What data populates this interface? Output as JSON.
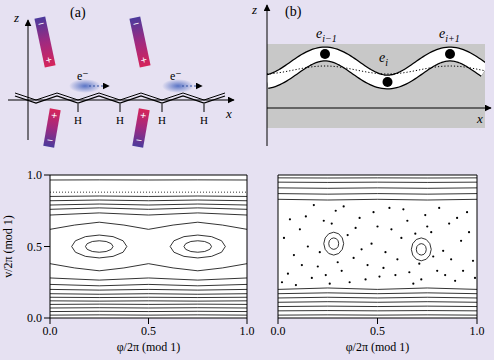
{
  "diagrams": {
    "a": {
      "label": "(a)",
      "axes": {
        "vertical": "z",
        "horizontal": "x"
      },
      "electrons": [
        "e⁻",
        "e⁻"
      ],
      "hydrogens": [
        "H",
        "H",
        "H",
        "H"
      ],
      "dipoles": [
        {
          "top": "−",
          "bottom": "+"
        },
        {
          "top": "−",
          "bottom": "+"
        },
        {
          "top": "+",
          "bottom": "−"
        },
        {
          "top": "+",
          "bottom": "−"
        }
      ]
    },
    "b": {
      "label": "(b)",
      "axes": {
        "vertical": "z",
        "horizontal": "x"
      },
      "sites": [
        {
          "base": "e",
          "sub": "i−1"
        },
        {
          "base": "e",
          "sub": "i"
        },
        {
          "base": "e",
          "sub": "i+1"
        }
      ]
    }
  },
  "chart_data": [
    {
      "type": "line",
      "color": "#000000",
      "xlabel": "φ/2π (mod 1)",
      "ylabel": "v/2π (mod 1)",
      "xlim": [
        0,
        1
      ],
      "ylim": [
        0,
        1
      ],
      "xticks": [
        {
          "value": 0,
          "label": "0.0"
        },
        {
          "value": 0.5,
          "label": "0.5"
        },
        {
          "value": 1,
          "label": "1.0"
        }
      ],
      "yticks": [
        {
          "value": 0,
          "label": "0.0"
        },
        {
          "value": 0.5,
          "label": "0.5"
        },
        {
          "value": 1,
          "label": "1.0"
        }
      ],
      "series": [
        {
          "x": [
            0,
            0.25,
            0.5,
            0.75,
            1
          ],
          "values": [
            0.02,
            0.022,
            0.02,
            0.022,
            0.02
          ]
        },
        {
          "x": [
            0,
            0.25,
            0.5,
            0.75,
            1
          ],
          "values": [
            0.045,
            0.047,
            0.045,
            0.047,
            0.045
          ]
        },
        {
          "x": [
            0,
            0.25,
            0.5,
            0.75,
            1
          ],
          "values": [
            0.07,
            0.072,
            0.07,
            0.072,
            0.07
          ]
        },
        {
          "x": [
            0,
            0.25,
            0.5,
            0.75,
            1
          ],
          "values": [
            0.095,
            0.097,
            0.095,
            0.097,
            0.095
          ]
        },
        {
          "x": [
            0,
            0.25,
            0.5,
            0.75,
            1
          ],
          "values": [
            0.12,
            0.118,
            0.12,
            0.118,
            0.12
          ]
        },
        {
          "x": [
            0,
            0.25,
            0.5,
            0.75,
            1
          ],
          "values": [
            0.145,
            0.143,
            0.145,
            0.143,
            0.145
          ]
        },
        {
          "x": [
            0,
            0.25,
            0.5,
            0.75,
            1
          ],
          "values": [
            0.17,
            0.166,
            0.17,
            0.166,
            0.17
          ]
        },
        {
          "x": [
            0,
            0.25,
            0.5,
            0.75,
            1
          ],
          "values": [
            0.2,
            0.195,
            0.2,
            0.195,
            0.2
          ]
        },
        {
          "x": [
            0,
            0.25,
            0.5,
            0.75,
            1
          ],
          "values": [
            0.235,
            0.225,
            0.235,
            0.225,
            0.235
          ]
        },
        {
          "x": [
            0,
            0.25,
            0.5,
            0.75,
            1
          ],
          "values": [
            0.28,
            0.265,
            0.28,
            0.265,
            0.28
          ]
        },
        {
          "x": [
            0,
            0.125,
            0.25,
            0.375,
            0.5,
            0.625,
            0.75,
            0.875,
            1
          ],
          "values": [
            0.38,
            0.35,
            0.33,
            0.35,
            0.38,
            0.35,
            0.33,
            0.35,
            0.38
          ]
        },
        {
          "x": [
            0,
            0.125,
            0.25,
            0.375,
            0.5,
            0.625,
            0.75,
            0.875,
            1
          ],
          "values": [
            0.62,
            0.65,
            0.67,
            0.65,
            0.62,
            0.65,
            0.67,
            0.65,
            0.62
          ]
        },
        {
          "x": [
            0.32,
            0.311,
            0.285,
            0.25,
            0.215,
            0.189,
            0.18,
            0.189,
            0.215,
            0.25,
            0.285,
            0.311,
            0.32
          ],
          "values": [
            0.5,
            0.52,
            0.535,
            0.54,
            0.535,
            0.52,
            0.5,
            0.48,
            0.465,
            0.46,
            0.465,
            0.48,
            0.5
          ]
        },
        {
          "x": [
            0.39,
            0.371,
            0.32,
            0.25,
            0.18,
            0.129,
            0.11,
            0.129,
            0.18,
            0.25,
            0.32,
            0.371,
            0.39
          ],
          "values": [
            0.5,
            0.54,
            0.569,
            0.58,
            0.569,
            0.54,
            0.5,
            0.46,
            0.431,
            0.42,
            0.431,
            0.46,
            0.5
          ]
        },
        {
          "x": [
            0.82,
            0.811,
            0.785,
            0.75,
            0.715,
            0.689,
            0.68,
            0.689,
            0.715,
            0.75,
            0.785,
            0.811,
            0.82
          ],
          "values": [
            0.5,
            0.52,
            0.535,
            0.54,
            0.535,
            0.52,
            0.5,
            0.48,
            0.465,
            0.46,
            0.465,
            0.48,
            0.5
          ]
        },
        {
          "x": [
            0.89,
            0.871,
            0.82,
            0.75,
            0.68,
            0.629,
            0.61,
            0.629,
            0.68,
            0.75,
            0.82,
            0.871,
            0.89
          ],
          "values": [
            0.5,
            0.54,
            0.569,
            0.58,
            0.569,
            0.54,
            0.5,
            0.46,
            0.431,
            0.42,
            0.431,
            0.46,
            0.5
          ]
        },
        {
          "x": [
            0,
            0.25,
            0.5,
            0.75,
            1
          ],
          "values": [
            0.72,
            0.735,
            0.72,
            0.735,
            0.72
          ]
        },
        {
          "x": [
            0,
            0.25,
            0.5,
            0.75,
            1
          ],
          "values": [
            0.76,
            0.77,
            0.76,
            0.77,
            0.76
          ]
        },
        {
          "x": [
            0,
            0.25,
            0.5,
            0.75,
            1
          ],
          "values": [
            0.79,
            0.797,
            0.79,
            0.797,
            0.79
          ]
        },
        {
          "x": [
            0,
            0.25,
            0.5,
            0.75,
            1
          ],
          "values": [
            0.82,
            0.825,
            0.82,
            0.825,
            0.82
          ]
        },
        {
          "x": [
            0,
            0.25,
            0.5,
            0.75,
            1
          ],
          "values": [
            0.85,
            0.853,
            0.85,
            0.853,
            0.85
          ]
        },
        {
          "x": [
            0,
            0.25,
            0.5,
            0.75,
            1
          ],
          "values": [
            0.88,
            0.88,
            0.88,
            0.88,
            0.88
          ],
          "line_style": "dotted"
        },
        {
          "x": [
            0,
            0.25,
            0.5,
            0.75,
            1
          ],
          "values": [
            0.965,
            0.966,
            0.965,
            0.966,
            0.965
          ]
        }
      ]
    },
    {
      "type": "line",
      "color": "#000000",
      "xlabel": "φ/2π (mod 1)",
      "xlim": [
        0,
        1
      ],
      "ylim": [
        0,
        1
      ],
      "xticks": [
        {
          "value": 0,
          "label": "0.0"
        },
        {
          "value": 0.5,
          "label": "0.5"
        },
        {
          "value": 1,
          "label": "1.0"
        }
      ],
      "yticks": [
        0,
        0.5,
        1
      ],
      "tick_labels": "x",
      "series": [
        {
          "x": [
            0,
            0.25,
            0.5,
            0.75,
            1
          ],
          "values": [
            0.02,
            0.022,
            0.02,
            0.022,
            0.02
          ]
        },
        {
          "x": [
            0,
            0.25,
            0.5,
            0.75,
            1
          ],
          "values": [
            0.05,
            0.052,
            0.05,
            0.052,
            0.05
          ]
        },
        {
          "x": [
            0,
            0.25,
            0.5,
            0.75,
            1
          ],
          "values": [
            0.08,
            0.083,
            0.08,
            0.083,
            0.08
          ]
        },
        {
          "x": [
            0,
            0.25,
            0.5,
            0.75,
            1
          ],
          "values": [
            0.11,
            0.114,
            0.11,
            0.114,
            0.11
          ]
        },
        {
          "x": [
            0,
            0.25,
            0.5,
            0.75,
            1
          ],
          "values": [
            0.14,
            0.145,
            0.14,
            0.145,
            0.14
          ]
        },
        {
          "x": [
            0,
            0.25,
            0.5,
            0.75,
            1
          ],
          "values": [
            0.17,
            0.176,
            0.17,
            0.176,
            0.17
          ]
        },
        {
          "x": [
            0,
            0.25,
            0.5,
            0.75,
            1
          ],
          "values": [
            0.2,
            0.21,
            0.2,
            0.21,
            0.2
          ]
        },
        {
          "x": [
            0.33,
            0.323,
            0.305,
            0.28,
            0.255,
            0.237,
            0.23,
            0.237,
            0.255,
            0.28,
            0.305,
            0.323,
            0.33
          ],
          "values": [
            0.52,
            0.56,
            0.589,
            0.6,
            0.589,
            0.56,
            0.52,
            0.48,
            0.451,
            0.44,
            0.451,
            0.48,
            0.52
          ]
        },
        {
          "x": [
            0.305,
            0.302,
            0.293,
            0.28,
            0.268,
            0.258,
            0.255,
            0.258,
            0.268,
            0.28,
            0.293,
            0.302,
            0.305
          ],
          "values": [
            0.52,
            0.54,
            0.555,
            0.56,
            0.555,
            0.54,
            0.52,
            0.5,
            0.485,
            0.48,
            0.485,
            0.5,
            0.52
          ]
        },
        {
          "x": [
            0.77,
            0.763,
            0.745,
            0.72,
            0.695,
            0.677,
            0.67,
            0.677,
            0.695,
            0.72,
            0.745,
            0.763,
            0.77
          ],
          "values": [
            0.48,
            0.52,
            0.549,
            0.56,
            0.549,
            0.52,
            0.48,
            0.44,
            0.411,
            0.4,
            0.411,
            0.44,
            0.48
          ]
        },
        {
          "x": [
            0.745,
            0.742,
            0.733,
            0.72,
            0.708,
            0.698,
            0.695,
            0.698,
            0.708,
            0.72,
            0.733,
            0.742,
            0.745
          ],
          "values": [
            0.48,
            0.5,
            0.515,
            0.52,
            0.515,
            0.5,
            0.48,
            0.46,
            0.445,
            0.44,
            0.445,
            0.46,
            0.48
          ]
        },
        {
          "type": "scatter",
          "marker": "dot",
          "x": [
            0.02,
            0.05,
            0.08,
            0.11,
            0.14,
            0.17,
            0.2,
            0.23,
            0.26,
            0.29,
            0.32,
            0.35,
            0.38,
            0.41,
            0.44,
            0.47,
            0.5,
            0.53,
            0.56,
            0.59,
            0.62,
            0.65,
            0.68,
            0.71,
            0.74,
            0.77,
            0.8,
            0.83,
            0.86,
            0.89,
            0.92,
            0.95,
            0.98,
            0.03,
            0.06,
            0.09,
            0.12,
            0.15,
            0.18,
            0.21,
            0.24,
            0.27,
            0.3,
            0.33,
            0.36,
            0.39,
            0.42,
            0.45,
            0.48,
            0.51,
            0.54,
            0.57,
            0.6,
            0.63,
            0.66,
            0.69,
            0.72,
            0.75,
            0.78,
            0.81,
            0.84,
            0.87,
            0.9,
            0.93,
            0.96,
            0.99
          ],
          "values": [
            0.25,
            0.31,
            0.44,
            0.62,
            0.71,
            0.28,
            0.36,
            0.68,
            0.24,
            0.75,
            0.33,
            0.58,
            0.42,
            0.7,
            0.27,
            0.52,
            0.64,
            0.35,
            0.77,
            0.3,
            0.56,
            0.68,
            0.24,
            0.38,
            0.72,
            0.6,
            0.33,
            0.47,
            0.66,
            0.26,
            0.54,
            0.74,
            0.4,
            0.56,
            0.69,
            0.23,
            0.37,
            0.5,
            0.79,
            0.46,
            0.3,
            0.66,
            0.39,
            0.78,
            0.25,
            0.63,
            0.48,
            0.37,
            0.74,
            0.29,
            0.46,
            0.62,
            0.41,
            0.76,
            0.32,
            0.59,
            0.27,
            0.64,
            0.43,
            0.77,
            0.3,
            0.41,
            0.7,
            0.33,
            0.6,
            0.28
          ]
        },
        {
          "x": [
            0,
            0.25,
            0.5,
            0.75,
            1
          ],
          "values": [
            0.83,
            0.825,
            0.83,
            0.825,
            0.83
          ]
        },
        {
          "x": [
            0,
            0.25,
            0.5,
            0.75,
            1
          ],
          "values": [
            0.87,
            0.866,
            0.87,
            0.866,
            0.87
          ]
        },
        {
          "x": [
            0,
            0.25,
            0.5,
            0.75,
            1
          ],
          "values": [
            0.91,
            0.907,
            0.91,
            0.907,
            0.91
          ]
        },
        {
          "x": [
            0,
            0.25,
            0.5,
            0.75,
            1
          ],
          "values": [
            0.95,
            0.948,
            0.95,
            0.948,
            0.95
          ]
        },
        {
          "x": [
            0,
            0.25,
            0.5,
            0.75,
            1
          ],
          "values": [
            0.98,
            0.979,
            0.98,
            0.979,
            0.98
          ]
        }
      ]
    }
  ]
}
